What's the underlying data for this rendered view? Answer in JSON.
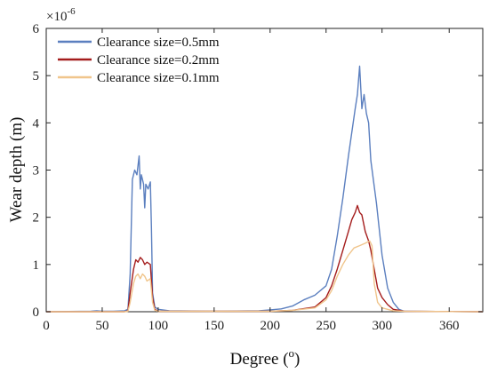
{
  "chart_data": {
    "type": "line",
    "xlabel_text": "Degree (",
    "xlabel_sup": "o",
    "xlabel_close": ")",
    "ylabel": "Wear depth (m)",
    "y_multiplier_base": "×10",
    "y_multiplier_exp": "-6",
    "xlim": [
      0,
      390
    ],
    "ylim": [
      0,
      6
    ],
    "x_ticks": [
      0,
      50,
      100,
      150,
      200,
      250,
      300,
      360
    ],
    "y_ticks": [
      0,
      1,
      2,
      3,
      4,
      5,
      6
    ],
    "grid": false,
    "legend_position": "top-left",
    "series": [
      {
        "name": "Clearance size=0.5mm",
        "color": "#5b7fbf",
        "points": [
          [
            0,
            0
          ],
          [
            40,
            0.01
          ],
          [
            45,
            0.02
          ],
          [
            50,
            0.01
          ],
          [
            60,
            0.01
          ],
          [
            70,
            0.02
          ],
          [
            73,
            0.05
          ],
          [
            75,
            0.8
          ],
          [
            77,
            2.8
          ],
          [
            79,
            3.0
          ],
          [
            81,
            2.9
          ],
          [
            83,
            3.3
          ],
          [
            84,
            2.6
          ],
          [
            85,
            2.9
          ],
          [
            87,
            2.7
          ],
          [
            88,
            2.2
          ],
          [
            89,
            2.7
          ],
          [
            91,
            2.6
          ],
          [
            93,
            2.75
          ],
          [
            94,
            1.8
          ],
          [
            95,
            0.4
          ],
          [
            97,
            0.1
          ],
          [
            100,
            0.05
          ],
          [
            110,
            0.02
          ],
          [
            150,
            0.01
          ],
          [
            190,
            0.02
          ],
          [
            200,
            0.04
          ],
          [
            210,
            0.06
          ],
          [
            220,
            0.12
          ],
          [
            230,
            0.25
          ],
          [
            240,
            0.35
          ],
          [
            250,
            0.55
          ],
          [
            255,
            0.9
          ],
          [
            260,
            1.6
          ],
          [
            265,
            2.4
          ],
          [
            270,
            3.3
          ],
          [
            273,
            3.8
          ],
          [
            276,
            4.3
          ],
          [
            278,
            4.6
          ],
          [
            280,
            5.2
          ],
          [
            282,
            4.3
          ],
          [
            284,
            4.6
          ],
          [
            286,
            4.2
          ],
          [
            288,
            4.0
          ],
          [
            290,
            3.2
          ],
          [
            295,
            2.3
          ],
          [
            300,
            1.2
          ],
          [
            305,
            0.5
          ],
          [
            310,
            0.2
          ],
          [
            315,
            0.05
          ],
          [
            320,
            0.01
          ],
          [
            390,
            0
          ]
        ]
      },
      {
        "name": "Clearance size=0.2mm",
        "color": "#a41c1c",
        "points": [
          [
            0,
            0
          ],
          [
            70,
            0
          ],
          [
            73,
            0.02
          ],
          [
            75,
            0.4
          ],
          [
            78,
            0.9
          ],
          [
            80,
            1.1
          ],
          [
            82,
            1.05
          ],
          [
            84,
            1.15
          ],
          [
            86,
            1.1
          ],
          [
            88,
            1.0
          ],
          [
            90,
            1.05
          ],
          [
            93,
            1.0
          ],
          [
            95,
            0.3
          ],
          [
            97,
            0.05
          ],
          [
            100,
            0.01
          ],
          [
            200,
            0.01
          ],
          [
            220,
            0.03
          ],
          [
            240,
            0.1
          ],
          [
            250,
            0.3
          ],
          [
            255,
            0.55
          ],
          [
            260,
            0.9
          ],
          [
            265,
            1.3
          ],
          [
            270,
            1.7
          ],
          [
            273,
            1.95
          ],
          [
            276,
            2.1
          ],
          [
            278,
            2.25
          ],
          [
            280,
            2.1
          ],
          [
            282,
            2.05
          ],
          [
            285,
            1.7
          ],
          [
            288,
            1.5
          ],
          [
            290,
            1.3
          ],
          [
            293,
            0.9
          ],
          [
            296,
            0.5
          ],
          [
            300,
            0.3
          ],
          [
            305,
            0.15
          ],
          [
            310,
            0.05
          ],
          [
            320,
            0.01
          ],
          [
            390,
            0
          ]
        ]
      },
      {
        "name": "Clearance size=0.1mm",
        "color": "#f0c58c",
        "points": [
          [
            0,
            0
          ],
          [
            70,
            0
          ],
          [
            73,
            0.01
          ],
          [
            75,
            0.2
          ],
          [
            78,
            0.6
          ],
          [
            80,
            0.75
          ],
          [
            82,
            0.8
          ],
          [
            84,
            0.7
          ],
          [
            86,
            0.8
          ],
          [
            88,
            0.75
          ],
          [
            90,
            0.65
          ],
          [
            93,
            0.7
          ],
          [
            95,
            0.2
          ],
          [
            97,
            0.03
          ],
          [
            100,
            0.01
          ],
          [
            200,
            0.01
          ],
          [
            220,
            0.03
          ],
          [
            240,
            0.08
          ],
          [
            250,
            0.25
          ],
          [
            255,
            0.45
          ],
          [
            260,
            0.75
          ],
          [
            265,
            1.0
          ],
          [
            270,
            1.2
          ],
          [
            275,
            1.35
          ],
          [
            280,
            1.4
          ],
          [
            285,
            1.45
          ],
          [
            289,
            1.5
          ],
          [
            291,
            1.4
          ],
          [
            293,
            0.6
          ],
          [
            296,
            0.2
          ],
          [
            300,
            0.08
          ],
          [
            310,
            0.02
          ],
          [
            320,
            0.01
          ],
          [
            390,
            0
          ]
        ]
      }
    ]
  }
}
